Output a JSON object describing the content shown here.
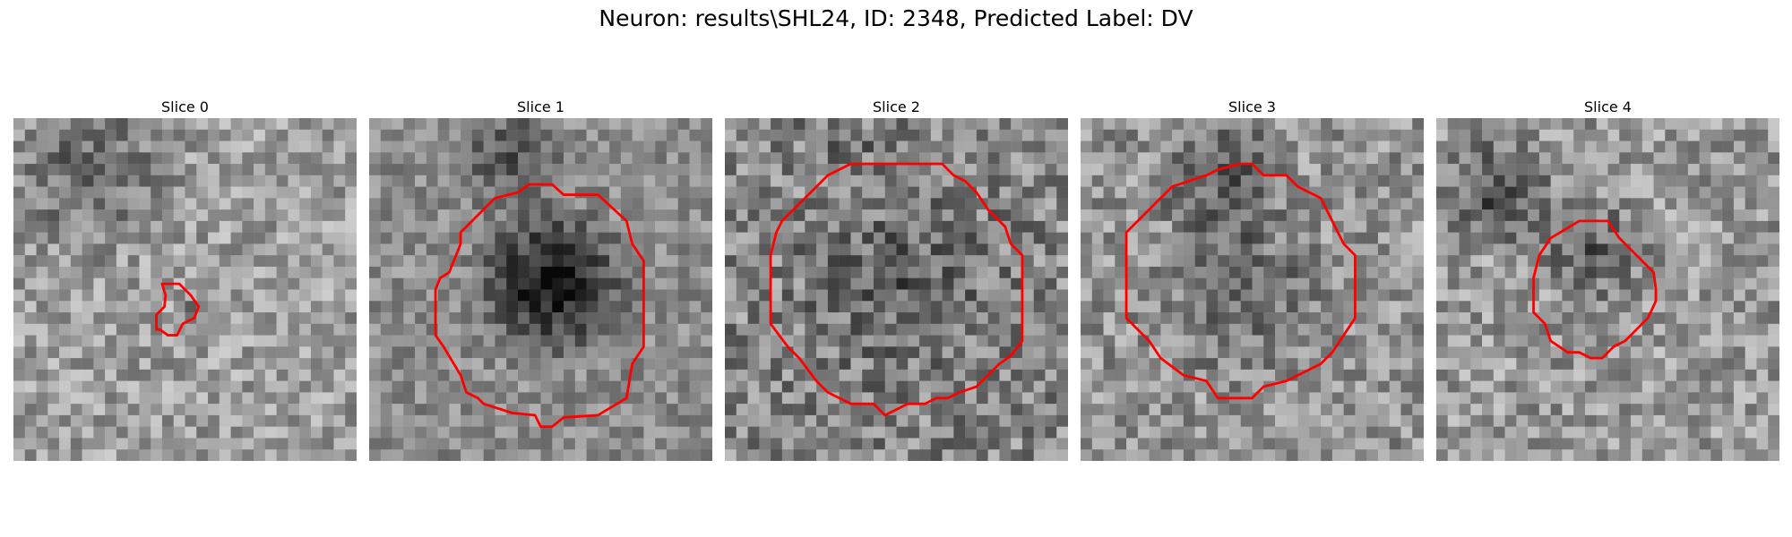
{
  "figure": {
    "title": "Neuron: results\\SHL24, ID: 2348, Predicted Label: DV"
  },
  "panels": [
    {
      "title": "Slice 0"
    },
    {
      "title": "Slice 1"
    },
    {
      "title": "Slice 2"
    },
    {
      "title": "Slice 3"
    },
    {
      "title": "Slice 4"
    }
  ],
  "contour_color": "#ff0000",
  "colormap": "grayscale"
}
